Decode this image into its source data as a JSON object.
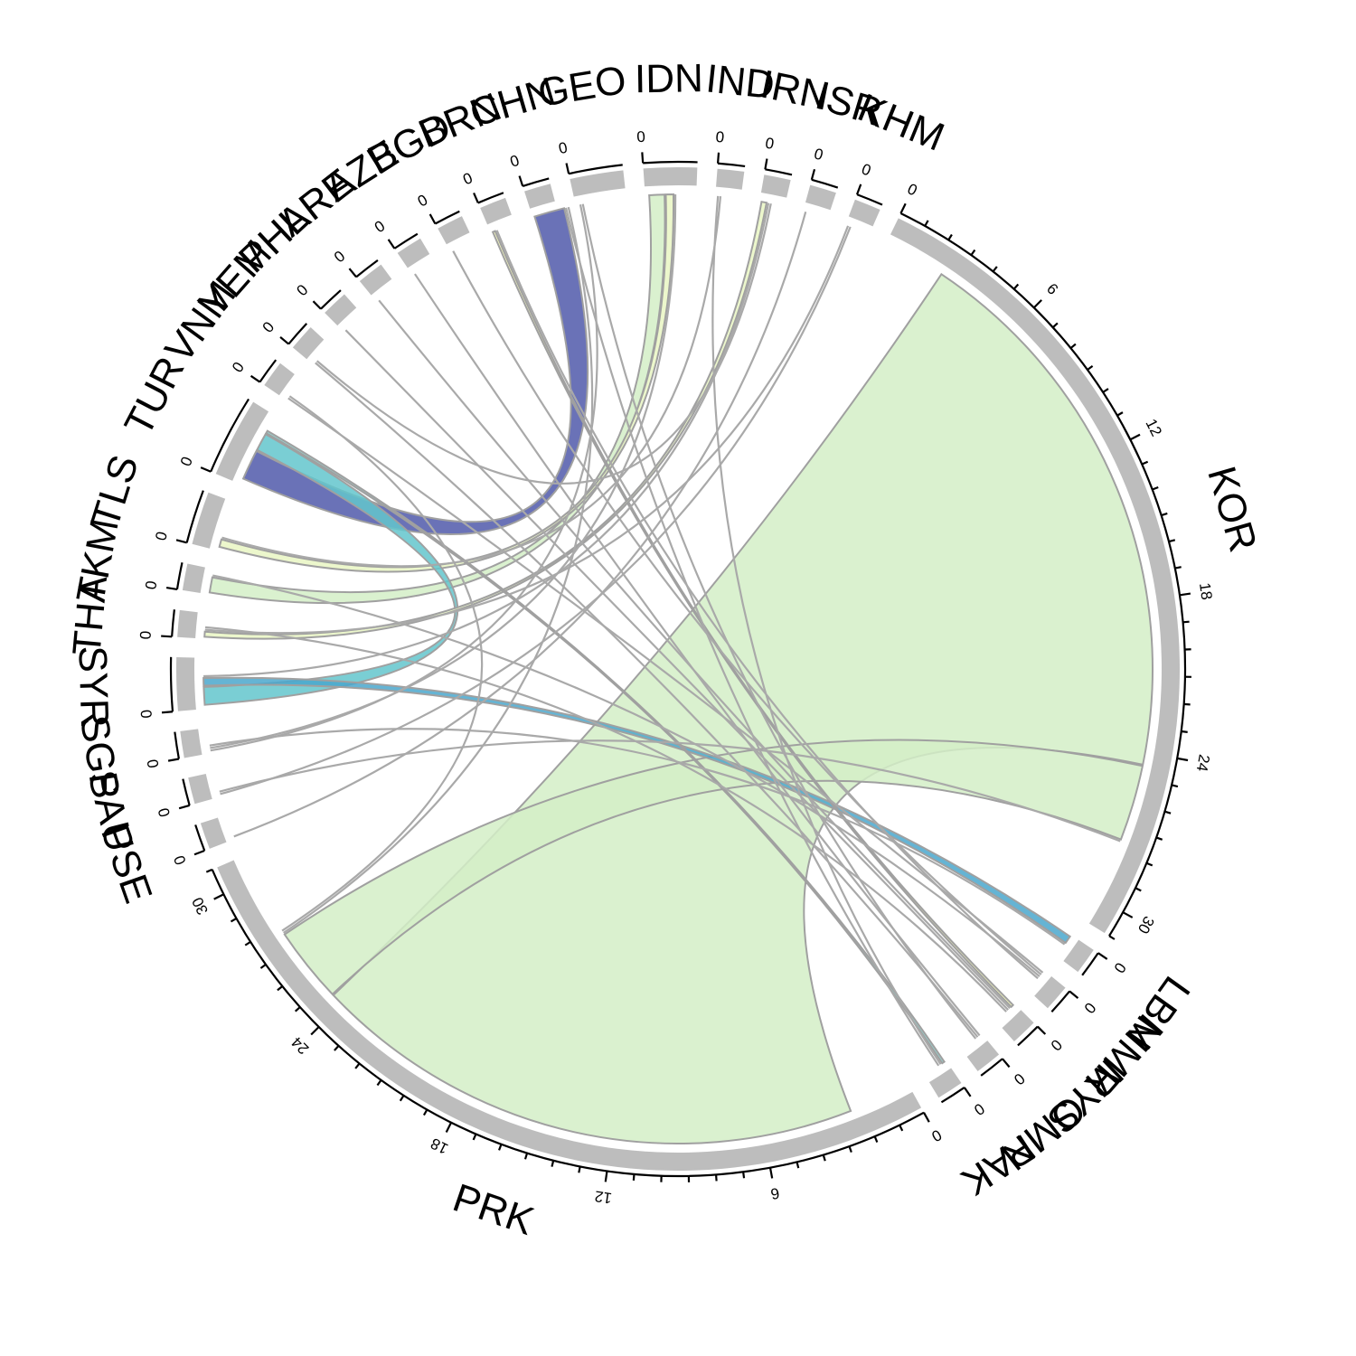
{
  "chart_data": {
    "type": "chord",
    "title": "",
    "sectors": [
      {
        "name": "PRK",
        "value": 31,
        "ticks": [
          0,
          6,
          12,
          18,
          24,
          30
        ]
      },
      {
        "name": "PSE",
        "value": 1,
        "ticks": [
          0
        ]
      },
      {
        "name": "SAU",
        "value": 1,
        "ticks": [
          0
        ]
      },
      {
        "name": "SGP",
        "value": 1,
        "ticks": [
          0
        ]
      },
      {
        "name": "SYR",
        "value": 2,
        "ticks": [
          0
        ]
      },
      {
        "name": "THA",
        "value": 1,
        "ticks": [
          0
        ]
      },
      {
        "name": "TKM",
        "value": 1,
        "ticks": [
          0
        ]
      },
      {
        "name": "TLS",
        "value": 2,
        "ticks": [
          0
        ]
      },
      {
        "name": "TUR",
        "value": 3,
        "ticks": [
          0
        ]
      },
      {
        "name": "VNM",
        "value": 1,
        "ticks": [
          0
        ]
      },
      {
        "name": "YEM",
        "value": 1,
        "ticks": [
          0
        ]
      },
      {
        "name": "PHL",
        "value": 1,
        "ticks": [
          0
        ]
      },
      {
        "name": "ARE",
        "value": 1,
        "ticks": [
          0
        ]
      },
      {
        "name": "AZE",
        "value": 1,
        "ticks": [
          0
        ]
      },
      {
        "name": "BGD",
        "value": 1,
        "ticks": [
          0
        ]
      },
      {
        "name": "BRN",
        "value": 1,
        "ticks": [
          0
        ]
      },
      {
        "name": "CHN",
        "value": 1,
        "ticks": [
          0
        ]
      },
      {
        "name": "GEO",
        "value": 2,
        "ticks": [
          0
        ]
      },
      {
        "name": "IDN",
        "value": 2,
        "ticks": [
          0
        ]
      },
      {
        "name": "IND",
        "value": 1,
        "ticks": [
          0
        ]
      },
      {
        "name": "IRN",
        "value": 1,
        "ticks": [
          0
        ]
      },
      {
        "name": "ISR",
        "value": 1,
        "ticks": [
          0
        ]
      },
      {
        "name": "KHM",
        "value": 1,
        "ticks": [
          0
        ]
      },
      {
        "name": "KOR",
        "value": 31,
        "ticks": [
          0,
          6,
          12,
          18,
          24,
          30
        ]
      },
      {
        "name": "LBN",
        "value": 1,
        "ticks": [
          0
        ]
      },
      {
        "name": "MMR",
        "value": 1,
        "ticks": [
          0
        ]
      },
      {
        "name": "MYS",
        "value": 1,
        "ticks": [
          0
        ]
      },
      {
        "name": "OMN",
        "value": 1,
        "ticks": [
          0
        ]
      },
      {
        "name": "PAK",
        "value": 1,
        "ticks": [
          0
        ]
      }
    ],
    "links": [
      {
        "from": "KOR",
        "to": "PRK",
        "value": 22,
        "color": "#d3efc7"
      },
      {
        "from": "KOR",
        "to": "PRK",
        "value": 3,
        "color": "#d3efc7"
      },
      {
        "from": "CHN",
        "to": "TUR",
        "value": 1.2,
        "color": "#5059aa"
      },
      {
        "from": "IDN",
        "to": "TKM",
        "value": 0.6,
        "color": "#d3efc7"
      },
      {
        "from": "IDN",
        "to": "TLS",
        "value": 0.3,
        "color": "#e9f6c3"
      },
      {
        "from": "TUR",
        "to": "SYR",
        "value": 0.7,
        "color": "#63c6cd"
      },
      {
        "from": "SYR",
        "to": "LBN",
        "value": 0.3,
        "color": "#4aa7cc"
      },
      {
        "from": "BRN",
        "to": "MYS",
        "value": 0.1,
        "color": "#f1f7b4"
      },
      {
        "from": "IRN",
        "to": "THA",
        "value": 0.2,
        "color": "#e9f6c3"
      },
      {
        "from": "TUR",
        "to": "PAK",
        "value": 0.1,
        "color": "#86cbc8"
      },
      {
        "from": "IND",
        "to": "PAK",
        "value": 0.05,
        "color": "#a9a9a9"
      },
      {
        "from": "IRN",
        "to": "SYR",
        "value": 0.05,
        "color": "#a9a9a9"
      },
      {
        "from": "GEO",
        "to": "SGP",
        "value": 0.05,
        "color": "#a9a9a9"
      },
      {
        "from": "ISR",
        "to": "PSE",
        "value": 0.05,
        "color": "#a9a9a9"
      },
      {
        "from": "KHM",
        "to": "THA",
        "value": 0.05,
        "color": "#a9a9a9"
      },
      {
        "from": "KHM",
        "to": "SAU",
        "value": 0.05,
        "color": "#a9a9a9"
      },
      {
        "from": "ARE",
        "to": "MYS",
        "value": 0.05,
        "color": "#a9a9a9"
      },
      {
        "from": "AZE",
        "to": "OMN",
        "value": 0.05,
        "color": "#a9a9a9"
      },
      {
        "from": "PHL",
        "to": "MYS",
        "value": 0.05,
        "color": "#a9a9a9"
      },
      {
        "from": "YEM",
        "to": "OMN",
        "value": 0.05,
        "color": "#a9a9a9"
      },
      {
        "from": "VNM",
        "to": "MMR",
        "value": 0.05,
        "color": "#a9a9a9"
      },
      {
        "from": "BGD",
        "to": "MMR",
        "value": 0.05,
        "color": "#a9a9a9"
      },
      {
        "from": "CHN",
        "to": "PAK",
        "value": 0.05,
        "color": "#a9a9a9"
      },
      {
        "from": "GEO",
        "to": "OMN",
        "value": 0.05,
        "color": "#a9a9a9"
      },
      {
        "from": "TLS",
        "to": "IND",
        "value": 0.05,
        "color": "#a9a9a9"
      },
      {
        "from": "THA",
        "to": "MYS",
        "value": 0.05,
        "color": "#a9a9a9"
      },
      {
        "from": "SGP",
        "to": "IDN",
        "value": 0.05,
        "color": "#a9a9a9"
      },
      {
        "from": "LBN",
        "to": "SGP",
        "value": 0.05,
        "color": "#a9a9a9"
      },
      {
        "from": "MMR",
        "to": "TKM",
        "value": 0.05,
        "color": "#a9a9a9"
      },
      {
        "from": "BRN",
        "to": "MMR",
        "value": 0.05,
        "color": "#a9a9a9"
      },
      {
        "from": "YEM",
        "to": "IRN",
        "value": 0.05,
        "color": "#a9a9a9"
      },
      {
        "from": "KOR",
        "to": "SAU",
        "value": 0.05,
        "color": "#a9a9a9"
      },
      {
        "from": "PRK",
        "to": "CHN",
        "value": 0.05,
        "color": "#a9a9a9"
      },
      {
        "from": "VNM",
        "to": "PRK",
        "value": 0.05,
        "color": "#a9a9a9"
      }
    ]
  }
}
